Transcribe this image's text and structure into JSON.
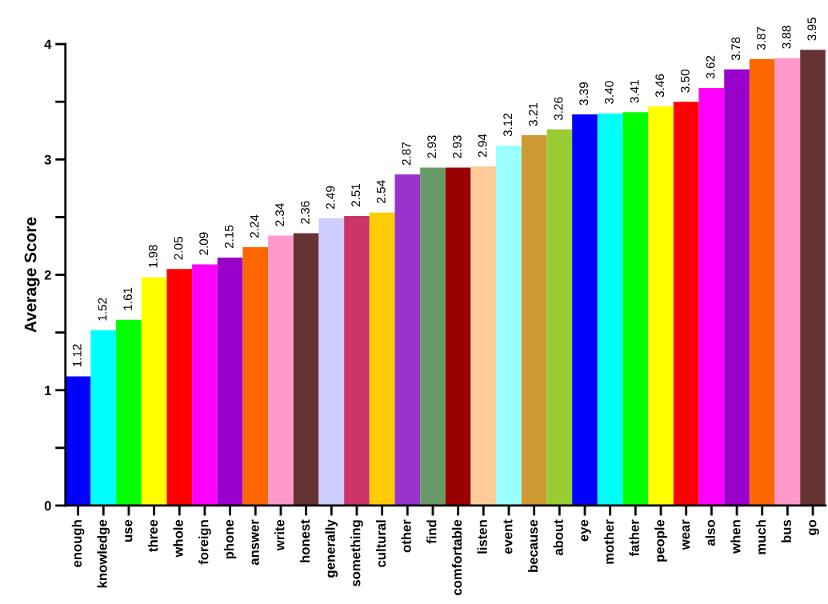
{
  "chart_data": {
    "type": "bar",
    "ylabel": "Average Score",
    "categories": [
      "enough",
      "knowledge",
      "use",
      "three",
      "whole",
      "foreign",
      "phone",
      "answer",
      "write",
      "honest",
      "generally",
      "something",
      "cultural",
      "other",
      "find",
      "comfortable",
      "listen",
      "event",
      "because",
      "about",
      "eye",
      "mother",
      "father",
      "people",
      "wear",
      "also",
      "when",
      "much",
      "bus",
      "go"
    ],
    "values": [
      1.12,
      1.52,
      1.61,
      1.98,
      2.05,
      2.09,
      2.15,
      2.24,
      2.34,
      2.36,
      2.49,
      2.51,
      2.54,
      2.87,
      2.93,
      2.93,
      2.94,
      3.12,
      3.21,
      3.26,
      3.39,
      3.4,
      3.41,
      3.46,
      3.5,
      3.62,
      3.78,
      3.87,
      3.88,
      3.95
    ],
    "colors": [
      "#0000ff",
      "#00ffff",
      "#00ff00",
      "#ffff00",
      "#ff0000",
      "#ff00ff",
      "#9900cc",
      "#ff6600",
      "#ff99cc",
      "#663333",
      "#ccccff",
      "#cc3366",
      "#ffcc00",
      "#9933cc",
      "#669966",
      "#990000",
      "#ffcc99",
      "#99ffff",
      "#cc9933",
      "#99cc33",
      "#0000ff",
      "#00ffff",
      "#00ff00",
      "#ffff00",
      "#ff0000",
      "#ff00ff",
      "#9900cc",
      "#ff6600",
      "#ff99cc",
      "#663333"
    ],
    "value_labels": [
      "1.12",
      "1.52",
      "1.61",
      "1.98",
      "2.05",
      "2.09",
      "2.15",
      "2.24",
      "2.34",
      "2.36",
      "2.49",
      "2.51",
      "2.54",
      "2.87",
      "2.93",
      "2.93",
      "2.94",
      "3.12",
      "3.21",
      "3.26",
      "3.39",
      "3.40",
      "3.41",
      "3.46",
      "3.50",
      "3.62",
      "3.78",
      "3.87",
      "3.88",
      "3.95"
    ],
    "ylim": [
      0,
      4
    ],
    "yticks": [
      0,
      {
        "value": 0.5,
        "label": null
      },
      1,
      {
        "value": 1.5,
        "label": null
      },
      2,
      {
        "value": 2.5,
        "label": null
      },
      3,
      {
        "value": 3.5,
        "label": null
      },
      4
    ],
    "grid": false,
    "legend": false
  }
}
